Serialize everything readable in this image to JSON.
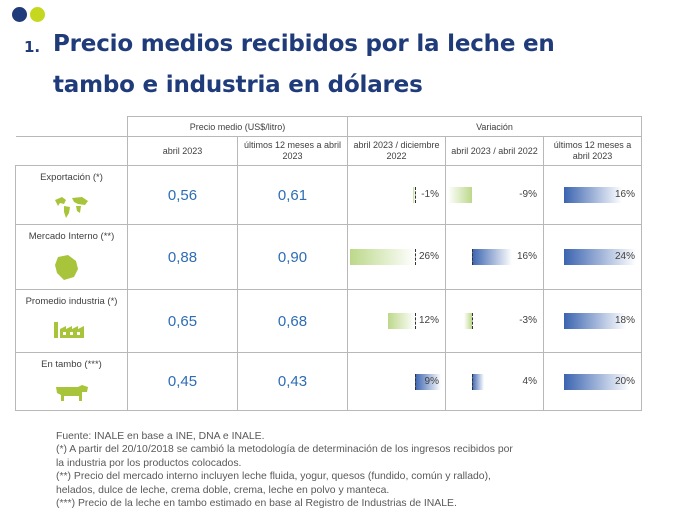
{
  "title": {
    "number": "1.",
    "line1": "Precio medios recibidos por la leche en",
    "line2": "tambo e industria en dólares"
  },
  "colors": {
    "dot1": "#1f3b7a",
    "dot2": "#c5d81f",
    "title": "#1f3b7a",
    "value": "#2e6db4",
    "green_bar": "#bcd88a",
    "blue_bar": "#3b64b0"
  },
  "table": {
    "group_price": "Precio medio (US$/litro)",
    "group_variation": "Variación",
    "col_price_1": "abril 2023",
    "col_price_2": "últimos 12 meses a abril 2023",
    "col_var_1": "abril 2023 / diciembre 2022",
    "col_var_2": "abril 2023 / abril 2022",
    "col_var_3": "últimos 12 meses a abril 2023",
    "rows": [
      {
        "label": "Exportación (*)",
        "icon": "map-icon",
        "price_1": "0,56",
        "price_2": "0,61",
        "var_1": "-1%",
        "var_2": "-9%",
        "var_3": "16%"
      },
      {
        "label": "Mercado Interno (**)",
        "icon": "uruguay-map-icon",
        "price_1": "0,88",
        "price_2": "0,90",
        "var_1": "26%",
        "var_2": "16%",
        "var_3": "24%"
      },
      {
        "label": "Promedio industria (*)",
        "icon": "factory-icon",
        "price_1": "0,65",
        "price_2": "0,68",
        "var_1": "12%",
        "var_2": "-3%",
        "var_3": "18%"
      },
      {
        "label": "En tambo (***)",
        "icon": "cow-icon",
        "price_1": "0,45",
        "price_2": "0,43",
        "var_1": "9%",
        "var_2": "4%",
        "var_3": "20%"
      }
    ]
  },
  "notes": {
    "l1": "Fuente: INALE en base a INE, DNA e INALE.",
    "l2": "(*) A partir del 20/10/2018 se cambió la metodología de determinación de los ingresos recibidos por",
    "l3": "la industria por los productos colocados.",
    "l4": "(**) Precio del mercado interno incluyen leche fluida, yogur, quesos (fundido, común y rallado),",
    "l5": "helados, dulce de leche, crema doble, crema, leche en polvo y manteca.",
    "l6": "(***) Precio de la leche en tambo estimado en base al Registro de Industrias de INALE."
  }
}
